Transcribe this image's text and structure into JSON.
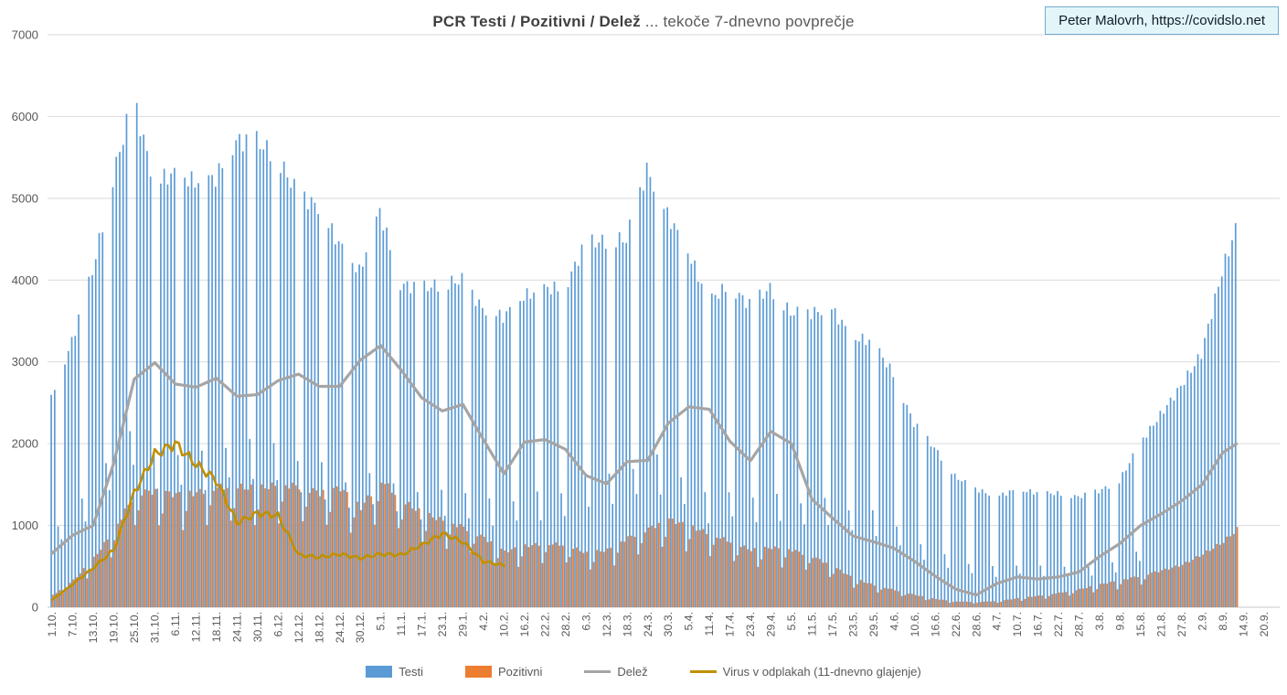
{
  "header": {
    "title_bold": "PCR Testi / Pozitivni / Delež",
    "title_rest": " ... tekoče 7-dnevno povprečje"
  },
  "watermark": {
    "text": "Peter Malovrh, https://covidslo.net",
    "bg_color": "#e2f6fa",
    "border_color": "#74aacd",
    "text_color": "#121c26"
  },
  "chart_data": {
    "type": "combo-bar-line",
    "title": "PCR Testi / Pozitivni / Delež ... tekoče 7-dnevno povprečje",
    "grid": true,
    "legend_position": "bottom",
    "y_axis": {
      "min": 0,
      "max": 7000,
      "step": 1000,
      "ticks": [
        0,
        1000,
        2000,
        3000,
        4000,
        5000,
        6000,
        7000
      ]
    },
    "x_tick_labels": [
      "1.10.",
      "7.10.",
      "13.10.",
      "19.10.",
      "25.10.",
      "31.10.",
      "6.11.",
      "12.11.",
      "18.11.",
      "24.11.",
      "30.11.",
      "6.12.",
      "12.12.",
      "18.12.",
      "24.12.",
      "30.12.",
      "5.1.",
      "11.1.",
      "17.1.",
      "23.1.",
      "29.1.",
      "4.2.",
      "10.2.",
      "16.2.",
      "22.2.",
      "28.2.",
      "6.3.",
      "12.3.",
      "18.3.",
      "24.3.",
      "30.3.",
      "5.4.",
      "11.4.",
      "17.4.",
      "23.4.",
      "29.4.",
      "5.5.",
      "11.5.",
      "17.5.",
      "23.5.",
      "29.5.",
      "4.6.",
      "10.6.",
      "16.6.",
      "22.6.",
      "28.6.",
      "4.7.",
      "10.7.",
      "16.7.",
      "22.7.",
      "28.7.",
      "3.8.",
      "9.8.",
      "15.8.",
      "21.8.",
      "27.8.",
      "2.9.",
      "8.9.",
      "14.9.",
      "20.9."
    ],
    "days_per_tick": 6,
    "total_days": 347,
    "first_day_of_week": "thursday",
    "series": [
      {
        "name": "Testi",
        "type": "bar",
        "color": "#5B9BD5",
        "envelope_at_ticks": [
          2550,
          3250,
          4100,
          5250,
          6230,
          5200,
          5300,
          5200,
          5250,
          5700,
          5700,
          5500,
          5050,
          4900,
          4450,
          4100,
          4850,
          3950,
          3900,
          3950,
          4000,
          3650,
          3550,
          3800,
          3900,
          3900,
          4450,
          4480,
          4500,
          5350,
          4800,
          4350,
          3750,
          3930,
          3700,
          3900,
          3600,
          3600,
          3650,
          3300,
          3250,
          2850,
          2250,
          1950,
          1600,
          1450,
          1350,
          1440,
          1400,
          1390,
          1350,
          1420,
          1540,
          2000,
          2350,
          2700,
          3100,
          4100,
          4880,
          null
        ],
        "weekend_factors": {
          "sat": 0.36,
          "sun": 0.28
        },
        "weekend_dip_until_day": 322
      },
      {
        "name": "Pozitivni",
        "type": "bar",
        "color": "#ED7D31",
        "envelope_at_ticks": [
          150,
          330,
          600,
          950,
          1400,
          1420,
          1380,
          1400,
          1470,
          1470,
          1450,
          1500,
          1480,
          1400,
          1460,
          1220,
          1560,
          1300,
          1150,
          1060,
          980,
          850,
          680,
          750,
          780,
          760,
          660,
          700,
          850,
          960,
          1075,
          990,
          900,
          800,
          700,
          730,
          700,
          620,
          500,
          350,
          270,
          210,
          150,
          100,
          70,
          65,
          75,
          110,
          140,
          175,
          220,
          280,
          330,
          390,
          450,
          520,
          650,
          800,
          1030,
          null
        ],
        "weekend_factors": {
          "sun": 0.7,
          "mon": 0.84
        },
        "weekend_dip_until_day": 322
      },
      {
        "name": "Delež",
        "type": "line",
        "color": "#A5A5A5",
        "width": 3.2,
        "values_at_ticks": [
          660,
          880,
          1000,
          1760,
          2790,
          2990,
          2730,
          2690,
          2800,
          2580,
          2600,
          2770,
          2850,
          2700,
          2700,
          3020,
          3200,
          2900,
          2560,
          2400,
          2480,
          2050,
          1630,
          2020,
          2050,
          1930,
          1610,
          1510,
          1780,
          1795,
          2250,
          2450,
          2420,
          2030,
          1790,
          2150,
          2000,
          1320,
          1090,
          870,
          800,
          720,
          560,
          380,
          220,
          150,
          290,
          370,
          345,
          370,
          430,
          620,
          780,
          1000,
          1140,
          1300,
          1500,
          1890,
          2050,
          null
        ],
        "end_day": 346
      },
      {
        "name": "Virus v odplakah (11-dnevno glajenje)",
        "type": "line",
        "color": "#BF9000",
        "width": 2.6,
        "values_at_ticks": [
          90,
          280,
          480,
          700,
          1400,
          1870,
          2000,
          1750,
          1550,
          1030,
          1150,
          1120,
          640,
          610,
          650,
          600,
          650,
          640,
          760,
          900,
          800,
          560,
          510
        ],
        "end_day": 132,
        "wiggle_pct": 0.035
      }
    ],
    "legend": [
      "Testi",
      "Pozitivni",
      "Delež",
      "Virus v odplakah (11-dnevno glajenje)"
    ]
  }
}
